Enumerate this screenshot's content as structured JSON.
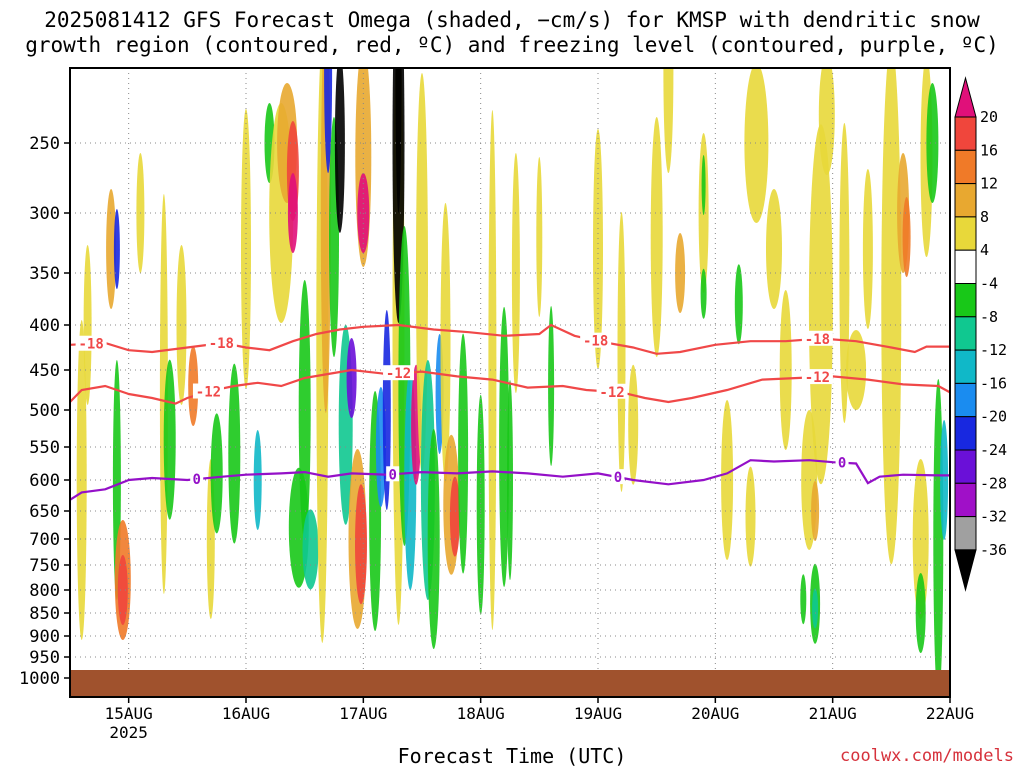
{
  "title_line1": "2025081412 GFS Forecast Omega (shaded, −cm/s) for KMSP with dendritic snow",
  "title_line2": "growth region (contoured, red, ºC) and freezing level (contoured, purple, ºC)",
  "xlabel": "Forecast Time (UTC)",
  "credit": "coolwx.com/models",
  "colors": {
    "ground": "#a0522d",
    "dendritic": "#f04848",
    "freezing": "#9410c8",
    "grid": "#888888"
  },
  "chart_data": {
    "type": "heatmap",
    "title": "2025081412 GFS Forecast Omega (shaded, −cm/s) for KMSP with dendritic snow growth region (contoured, red, ºC) and freezing level (contoured, purple, ºC)",
    "xlabel": "Forecast Time (UTC)",
    "ylabel": "",
    "x_tick_labels": [
      "15AUG",
      "16AUG",
      "17AUG",
      "18AUG",
      "19AUG",
      "20AUG",
      "21AUG",
      "22AUG"
    ],
    "x_tick_sublabel": "2025",
    "xlim_days": [
      14.5,
      22.0
    ],
    "y_tick_labels": [
      "250",
      "300",
      "350",
      "400",
      "450",
      "500",
      "550",
      "600",
      "650",
      "700",
      "750",
      "800",
      "850",
      "900",
      "950",
      "1000"
    ],
    "y_axis_values_hpa": [
      250,
      300,
      350,
      400,
      450,
      500,
      550,
      600,
      650,
      700,
      750,
      800,
      850,
      900,
      950,
      1000
    ],
    "colorbar": {
      "labels": [
        "20",
        "16",
        "12",
        "8",
        "4",
        "-4",
        "-8",
        "-12",
        "-16",
        "-20",
        "-24",
        "-28",
        "-32",
        "-36"
      ],
      "bins": [
        {
          "range": ">20",
          "color": "#e0107a"
        },
        {
          "range": "16 to 20",
          "color": "#f0463c"
        },
        {
          "range": "12 to 16",
          "color": "#f07a28"
        },
        {
          "range": "8 to 12",
          "color": "#e8a830"
        },
        {
          "range": "4 to 8",
          "color": "#e8d83a"
        },
        {
          "range": "-4 to 4",
          "color": "#ffffff"
        },
        {
          "range": "-8 to -4",
          "color": "#18c818"
        },
        {
          "range": "-12 to -8",
          "color": "#10c890"
        },
        {
          "range": "-16 to -12",
          "color": "#10b8c8"
        },
        {
          "range": "-20 to -16",
          "color": "#1a8cf0"
        },
        {
          "range": "-24 to -20",
          "color": "#1828e0"
        },
        {
          "range": "-28 to -24",
          "color": "#6a10d8"
        },
        {
          "range": "-32 to -28",
          "color": "#a010c8"
        },
        {
          "range": "-36 to -32",
          "color": "#a0a0a0"
        },
        {
          "range": "<-36",
          "color": "#000000"
        }
      ]
    },
    "contours": [
      {
        "value": -18,
        "label": "-18",
        "color": "#f04848",
        "points": [
          [
            14.5,
            422
          ],
          [
            14.8,
            420
          ],
          [
            15.0,
            428
          ],
          [
            15.2,
            430
          ],
          [
            15.5,
            425
          ],
          [
            15.8,
            420
          ],
          [
            16.0,
            425
          ],
          [
            16.2,
            428
          ],
          [
            16.4,
            418
          ],
          [
            16.6,
            410
          ],
          [
            16.8,
            405
          ],
          [
            17.0,
            402
          ],
          [
            17.3,
            400
          ],
          [
            17.6,
            405
          ],
          [
            17.9,
            408
          ],
          [
            18.2,
            412
          ],
          [
            18.5,
            410
          ],
          [
            18.6,
            400
          ],
          [
            18.8,
            412
          ],
          [
            19.0,
            418
          ],
          [
            19.3,
            425
          ],
          [
            19.5,
            432
          ],
          [
            19.7,
            430
          ],
          [
            20.0,
            422
          ],
          [
            20.3,
            418
          ],
          [
            20.6,
            418
          ],
          [
            20.9,
            415
          ],
          [
            21.2,
            418
          ],
          [
            21.5,
            425
          ],
          [
            21.7,
            430
          ],
          [
            21.8,
            424
          ],
          [
            22.0,
            424
          ]
        ],
        "label_x": [
          14.68,
          15.79,
          18.98,
          20.87
        ]
      },
      {
        "value": -12,
        "label": "-12",
        "color": "#f04848",
        "points": [
          [
            14.5,
            490
          ],
          [
            14.6,
            475
          ],
          [
            14.8,
            470
          ],
          [
            15.0,
            480
          ],
          [
            15.2,
            485
          ],
          [
            15.4,
            492
          ],
          [
            15.5,
            485
          ],
          [
            15.7,
            476
          ],
          [
            15.9,
            470
          ],
          [
            16.1,
            466
          ],
          [
            16.3,
            470
          ],
          [
            16.5,
            460
          ],
          [
            16.7,
            455
          ],
          [
            16.9,
            450
          ],
          [
            17.2,
            455
          ],
          [
            17.5,
            452
          ],
          [
            17.8,
            458
          ],
          [
            18.1,
            462
          ],
          [
            18.4,
            472
          ],
          [
            18.7,
            470
          ],
          [
            18.9,
            475
          ],
          [
            19.2,
            478
          ],
          [
            19.4,
            485
          ],
          [
            19.6,
            490
          ],
          [
            19.8,
            485
          ],
          [
            20.1,
            475
          ],
          [
            20.4,
            462
          ],
          [
            20.7,
            460
          ],
          [
            21.0,
            458
          ],
          [
            21.3,
            462
          ],
          [
            21.6,
            468
          ],
          [
            21.9,
            470
          ],
          [
            22.0,
            478
          ]
        ],
        "label_x": [
          15.68,
          17.3,
          19.12,
          20.87
        ]
      },
      {
        "value": 0,
        "label": "0",
        "color": "#9410c8",
        "points": [
          [
            14.5,
            632
          ],
          [
            14.6,
            620
          ],
          [
            14.8,
            615
          ],
          [
            15.0,
            600
          ],
          [
            15.2,
            597
          ],
          [
            15.5,
            600
          ],
          [
            15.8,
            595
          ],
          [
            16.0,
            592
          ],
          [
            16.3,
            590
          ],
          [
            16.5,
            588
          ],
          [
            16.7,
            595
          ],
          [
            16.9,
            590
          ],
          [
            17.2,
            592
          ],
          [
            17.5,
            588
          ],
          [
            17.8,
            590
          ],
          [
            18.1,
            587
          ],
          [
            18.4,
            590
          ],
          [
            18.7,
            595
          ],
          [
            19.0,
            590
          ],
          [
            19.3,
            600
          ],
          [
            19.6,
            607
          ],
          [
            19.9,
            600
          ],
          [
            20.1,
            590
          ],
          [
            20.3,
            570
          ],
          [
            20.5,
            572
          ],
          [
            20.8,
            570
          ],
          [
            21.0,
            573
          ],
          [
            21.2,
            575
          ],
          [
            21.3,
            605
          ],
          [
            21.4,
            595
          ],
          [
            21.6,
            592
          ],
          [
            21.9,
            593
          ],
          [
            22.0,
            593
          ]
        ],
        "label_x": [
          15.58,
          17.25,
          19.17,
          21.08
        ]
      }
    ],
    "ground_level_hpa": 1000
  }
}
